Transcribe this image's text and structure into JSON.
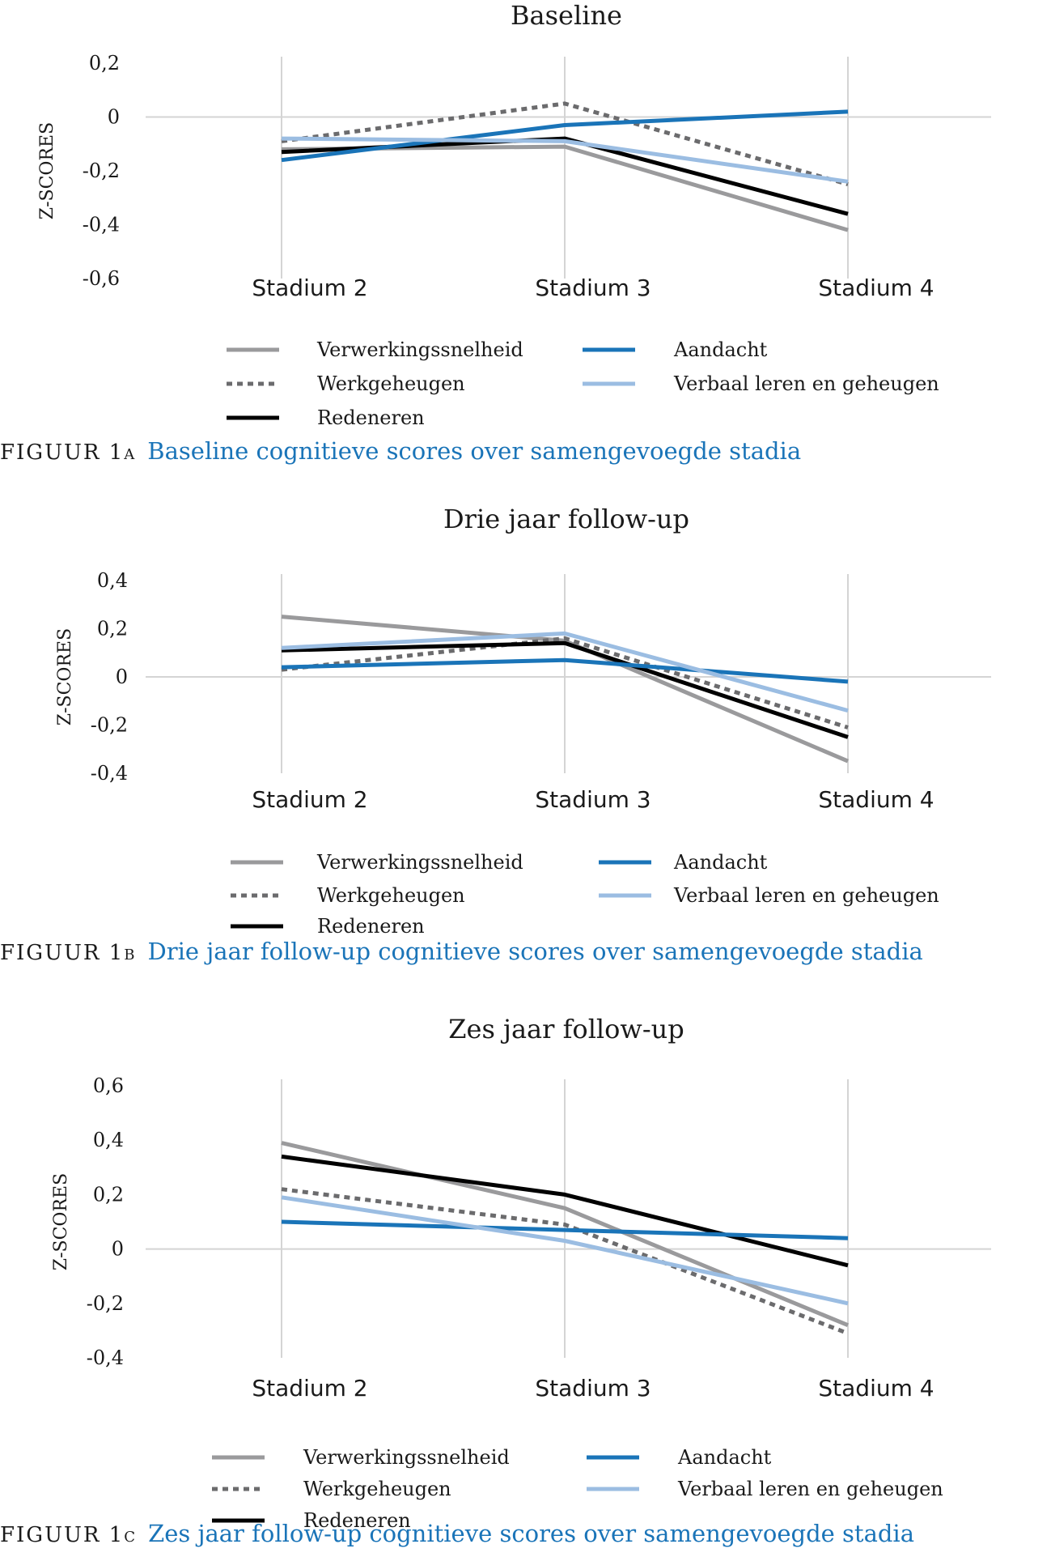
{
  "colors": {
    "Verwerkingssnelheid": "#9a9a9c",
    "Werkgeheugen": "#6b6b6d",
    "Redeneren": "#000000",
    "Aandacht": "#1a74b8",
    "Verbaal leren en geheugen": "#9bbde2",
    "caption": "#1a74b8"
  },
  "figures": [
    {
      "caption_label": "FIGUUR 1a",
      "caption_text": "Baseline cognitieve scores over samengevoegde stadia"
    },
    {
      "caption_label": "FIGUUR 1b",
      "caption_text": "Drie jaar follow-up cognitieve scores over samengevoegde stadia"
    },
    {
      "caption_label": "FIGUUR 1c",
      "caption_text": "Zes jaar follow-up cognitieve scores over samengevoegde stadia"
    }
  ],
  "chart_data": [
    {
      "type": "line",
      "title": "Baseline",
      "ylabel": "Z-SCORES",
      "xlabel": "",
      "categories": [
        "Stadium 2",
        "Stadium 3",
        "Stadium 4"
      ],
      "ylim": [
        -0.6,
        0.2
      ],
      "yticks": [
        "0,2",
        "0",
        "-0,2",
        "-0,4",
        "-0,6"
      ],
      "legend_position": "bottom",
      "series": [
        {
          "name": "Verwerkingssnelheid",
          "values": [
            -0.12,
            -0.11,
            -0.42
          ],
          "style": "solid"
        },
        {
          "name": "Werkgeheugen",
          "values": [
            -0.09,
            0.05,
            -0.25
          ],
          "style": "dotted"
        },
        {
          "name": "Redeneren",
          "values": [
            -0.13,
            -0.08,
            -0.36
          ],
          "style": "solid"
        },
        {
          "name": "Aandacht",
          "values": [
            -0.16,
            -0.03,
            0.02
          ],
          "style": "solid"
        },
        {
          "name": "Verbaal leren en geheugen",
          "values": [
            -0.08,
            -0.09,
            -0.24
          ],
          "style": "solid"
        }
      ]
    },
    {
      "type": "line",
      "title": "Drie jaar follow-up",
      "ylabel": "Z-SCORES",
      "xlabel": "",
      "categories": [
        "Stadium 2",
        "Stadium 3",
        "Stadium 4"
      ],
      "ylim": [
        -0.4,
        0.4
      ],
      "yticks": [
        "0,4",
        "0,2",
        "0",
        "-0,2",
        "-0,4"
      ],
      "legend_position": "bottom",
      "series": [
        {
          "name": "Verwerkingssnelheid",
          "values": [
            0.25,
            0.15,
            -0.35
          ],
          "style": "solid"
        },
        {
          "name": "Werkgeheugen",
          "values": [
            0.03,
            0.16,
            -0.21
          ],
          "style": "dotted"
        },
        {
          "name": "Redeneren",
          "values": [
            0.11,
            0.14,
            -0.25
          ],
          "style": "solid"
        },
        {
          "name": "Aandacht",
          "values": [
            0.04,
            0.07,
            -0.02
          ],
          "style": "solid"
        },
        {
          "name": "Verbaal leren en geheugen",
          "values": [
            0.12,
            0.18,
            -0.14
          ],
          "style": "solid"
        }
      ]
    },
    {
      "type": "line",
      "title": "Zes jaar follow-up",
      "ylabel": "Z-SCORES",
      "xlabel": "",
      "categories": [
        "Stadium 2",
        "Stadium 3",
        "Stadium 4"
      ],
      "ylim": [
        -0.4,
        0.6
      ],
      "yticks": [
        "0,6",
        "0,4",
        "0,2",
        "0",
        "-0,2",
        "-0,4"
      ],
      "legend_position": "bottom",
      "series": [
        {
          "name": "Verwerkingssnelheid",
          "values": [
            0.39,
            0.15,
            -0.28
          ],
          "style": "solid"
        },
        {
          "name": "Werkgeheugen",
          "values": [
            0.22,
            0.09,
            -0.31
          ],
          "style": "dotted"
        },
        {
          "name": "Redeneren",
          "values": [
            0.34,
            0.2,
            -0.06
          ],
          "style": "solid"
        },
        {
          "name": "Aandacht",
          "values": [
            0.1,
            0.07,
            0.04
          ],
          "style": "solid"
        },
        {
          "name": "Verbaal leren en geheugen",
          "values": [
            0.19,
            0.03,
            -0.2
          ],
          "style": "solid"
        }
      ]
    }
  ]
}
